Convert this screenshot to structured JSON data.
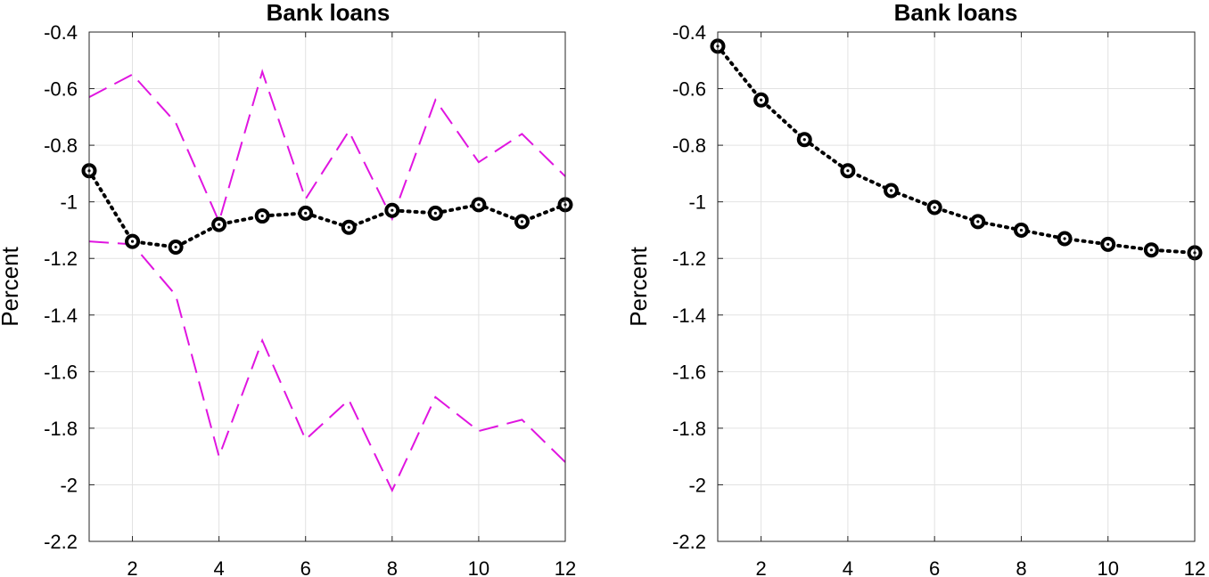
{
  "colors": {
    "main_series": "#000000",
    "band_series": "#e015e0",
    "grid": "#e2e2e2",
    "axes": "#262626"
  },
  "chart_data": [
    {
      "type": "line",
      "title": "Bank loans",
      "xlabel": "",
      "ylabel": "Percent",
      "xlim": [
        1,
        12
      ],
      "ylim": [
        -2.2,
        -0.4
      ],
      "xticks": [
        2,
        4,
        6,
        8,
        10,
        12
      ],
      "yticks": [
        -2.2,
        -2,
        -1.8,
        -1.6,
        -1.4,
        -1.2,
        -1,
        -0.8,
        -0.6,
        -0.4
      ],
      "ytick_labels": [
        "-2.2",
        "-2",
        "-1.8",
        "-1.6",
        "-1.4",
        "-1.2",
        "-1",
        "-0.8",
        "-0.6",
        "-0.4"
      ],
      "grid": true,
      "x": [
        1,
        2,
        3,
        4,
        5,
        6,
        7,
        8,
        9,
        10,
        11,
        12
      ],
      "series": [
        {
          "style": "dotted-circle-markers",
          "color": "#000000",
          "values": [
            -0.89,
            -1.14,
            -1.16,
            -1.08,
            -1.05,
            -1.04,
            -1.09,
            -1.03,
            -1.04,
            -1.01,
            -1.07,
            -1.01
          ]
        },
        {
          "style": "dashed",
          "color": "#e015e0",
          "values": [
            -0.63,
            -0.55,
            -0.72,
            -1.07,
            -0.54,
            -0.99,
            -0.75,
            -1.06,
            -0.64,
            -0.86,
            -0.76,
            -0.91
          ]
        },
        {
          "style": "dashed",
          "color": "#e015e0",
          "values": [
            -1.14,
            -1.15,
            -1.33,
            -1.9,
            -1.49,
            -1.84,
            -1.7,
            -2.02,
            -1.69,
            -1.81,
            -1.77,
            -1.92
          ]
        }
      ]
    },
    {
      "type": "line",
      "title": "Bank loans",
      "xlabel": "",
      "ylabel": "Percent",
      "xlim": [
        1,
        12
      ],
      "ylim": [
        -2.2,
        -0.4
      ],
      "xticks": [
        2,
        4,
        6,
        8,
        10,
        12
      ],
      "yticks": [
        -2.2,
        -2,
        -1.8,
        -1.6,
        -1.4,
        -1.2,
        -1,
        -0.8,
        -0.6,
        -0.4
      ],
      "ytick_labels": [
        "-2.2",
        "-2",
        "-1.8",
        "-1.6",
        "-1.4",
        "-1.2",
        "-1",
        "-0.8",
        "-0.6",
        "-0.4"
      ],
      "grid": true,
      "x": [
        1,
        2,
        3,
        4,
        5,
        6,
        7,
        8,
        9,
        10,
        11,
        12
      ],
      "series": [
        {
          "style": "dotted-circle-markers",
          "color": "#000000",
          "values": [
            -0.45,
            -0.64,
            -0.78,
            -0.89,
            -0.96,
            -1.02,
            -1.07,
            -1.1,
            -1.13,
            -1.15,
            -1.17,
            -1.18
          ]
        }
      ]
    }
  ]
}
